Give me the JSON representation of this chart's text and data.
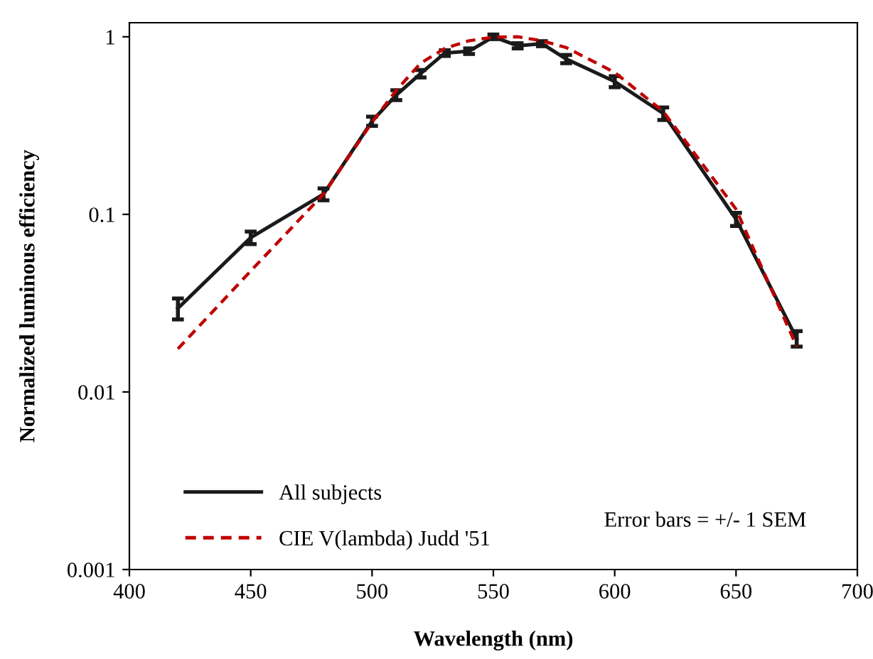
{
  "chart_data": {
    "type": "line",
    "xlabel": "Wavelength (nm)",
    "ylabel": "Normalized luminous efficiency",
    "log": "y",
    "xlim": [
      400,
      700
    ],
    "xticks": [
      400,
      450,
      500,
      550,
      600,
      650,
      700
    ],
    "ylim": [
      0.001,
      1.2
    ],
    "yticks": [
      {
        "value": 0.001,
        "label": "0.001"
      },
      {
        "value": 0.01,
        "label": "0.01"
      },
      {
        "value": 0.1,
        "label": "0.1"
      },
      {
        "value": 1,
        "label": "1"
      }
    ],
    "grid": false,
    "legend": "bottom left",
    "marker": "none",
    "series": [
      {
        "name": "All subjects",
        "color": "#1a1a1a",
        "line_style": "solid",
        "x": [
          420,
          450,
          480,
          500,
          510,
          520,
          530,
          540,
          550,
          560,
          570,
          580,
          600,
          620,
          650,
          675
        ],
        "values": [
          0.0296,
          0.074,
          0.13,
          0.335,
          0.47,
          0.62,
          0.81,
          0.83,
          1.0,
          0.89,
          0.915,
          0.75,
          0.56,
          0.37,
          0.094,
          0.02
        ],
        "errors": [
          0.004,
          0.006,
          0.01,
          0.02,
          0.03,
          0.03,
          0.03,
          0.03,
          0.03,
          0.03,
          0.03,
          0.04,
          0.04,
          0.03,
          0.008,
          0.002
        ]
      },
      {
        "name": "CIE V(lambda) Judd '51",
        "color": "#c00000",
        "line_style": "dashed",
        "x": [
          420,
          450,
          480,
          500,
          510,
          520,
          530,
          540,
          550,
          560,
          570,
          580,
          600,
          620,
          650,
          675
        ],
        "values": [
          0.0175,
          0.048,
          0.13,
          0.33,
          0.5,
          0.71,
          0.86,
          0.95,
          0.995,
          1.0,
          0.95,
          0.87,
          0.63,
          0.38,
          0.107,
          0.018
        ]
      }
    ],
    "annotations": [
      "Error bars = +/- 1 SEM"
    ]
  }
}
